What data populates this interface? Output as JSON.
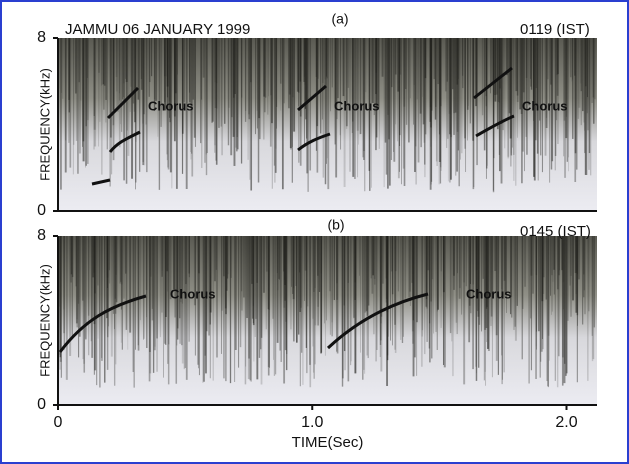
{
  "chart_data": [
    {
      "type": "spectrogram",
      "title": "JAMMU 06 JANUARY 1999",
      "label": "(a)",
      "time": "0119 (IST)",
      "ylabel": "FREQUENCY(kHz)",
      "ylim": [
        0,
        8
      ],
      "yticks": [
        0,
        8
      ],
      "annotations": [
        "Chorus",
        "Chorus",
        "Chorus"
      ]
    },
    {
      "type": "spectrogram",
      "label": "(b)",
      "time": "0145 (IST)",
      "ylabel": "FREQUENCY(kHz)",
      "ylim": [
        0,
        8
      ],
      "yticks": [
        0,
        8
      ],
      "xlim": [
        0,
        2.12
      ],
      "xticks": [
        0,
        {
          "value": 1,
          "label": "1.0"
        },
        {
          "value": 2,
          "label": "2.0"
        }
      ],
      "xlabel": "TIME(Sec)",
      "annotations": [
        "Chorus",
        "Chorus"
      ]
    }
  ]
}
